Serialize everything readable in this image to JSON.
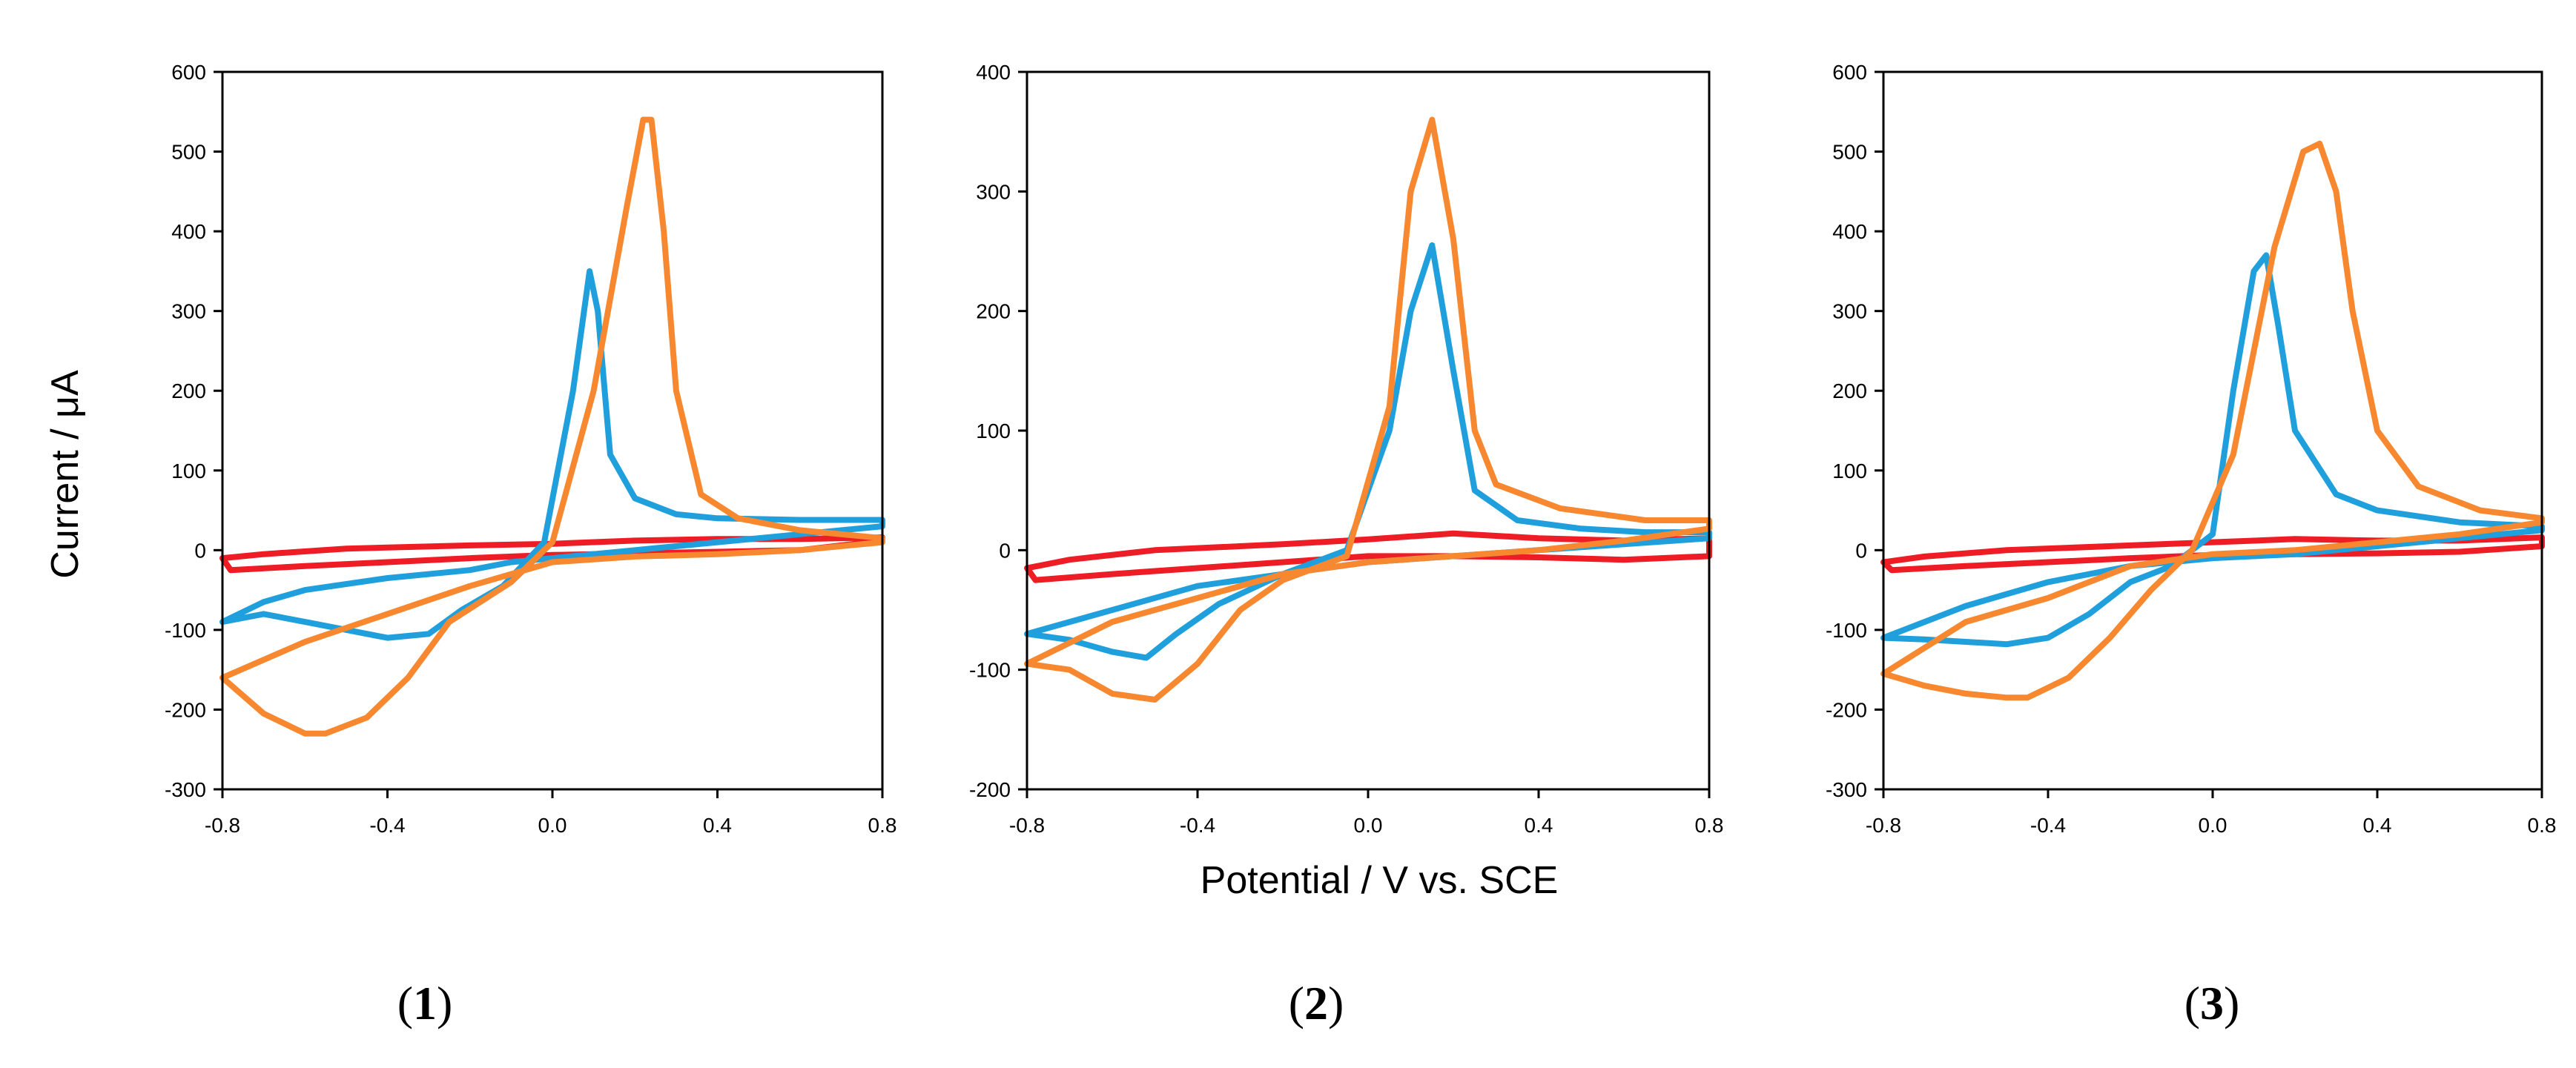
{
  "figure": {
    "ylabel": "Current / μA",
    "xlabel": "Potential / V vs. SCE"
  },
  "colors": {
    "blue": "#1fa0dc",
    "orange": "#f7882f",
    "red": "#ee1c24"
  },
  "chart_data": [
    {
      "type": "line",
      "panel_label": "1",
      "xlim": [
        -0.8,
        0.8
      ],
      "ylim": [
        -300,
        600
      ],
      "x_ticks": [
        -0.8,
        -0.4,
        0.0,
        0.4,
        0.8
      ],
      "x_tick_labels": [
        "-0.8",
        "-0.4",
        "0.0",
        "0.4",
        "0.8"
      ],
      "y_ticks": [
        -300,
        -200,
        -100,
        0,
        100,
        200,
        300,
        400,
        500,
        600
      ],
      "y_tick_labels": [
        "-300",
        "-200",
        "-100",
        "0",
        "100",
        "200",
        "300",
        "400",
        "500",
        "600"
      ],
      "grid": false,
      "series": [
        {
          "color": "red",
          "x": [
            -0.8,
            -0.7,
            -0.5,
            -0.2,
            0.0,
            0.2,
            0.4,
            0.6,
            0.8,
            0.8,
            0.6,
            0.4,
            0.2,
            0.0,
            -0.2,
            -0.4,
            -0.6,
            -0.78,
            -0.8
          ],
          "y": [
            -10,
            -5,
            2,
            6,
            8,
            12,
            14,
            14,
            16,
            12,
            0,
            -2,
            -4,
            -6,
            -10,
            -15,
            -20,
            -25,
            -10
          ]
        },
        {
          "color": "blue",
          "x": [
            -0.8,
            -0.7,
            -0.6,
            -0.4,
            -0.3,
            -0.22,
            -0.12,
            -0.02,
            0.05,
            0.09,
            0.11,
            0.14,
            0.2,
            0.3,
            0.4,
            0.6,
            0.8,
            0.8,
            0.6,
            0.4,
            0.2,
            0.0,
            -0.1,
            -0.2,
            -0.4,
            -0.6,
            -0.7,
            -0.8
          ],
          "y": [
            -90,
            -80,
            -90,
            -110,
            -105,
            -75,
            -45,
            10,
            200,
            350,
            300,
            120,
            65,
            45,
            40,
            38,
            38,
            30,
            20,
            10,
            0,
            -10,
            -15,
            -25,
            -35,
            -50,
            -65,
            -90
          ]
        },
        {
          "color": "orange",
          "x": [
            -0.8,
            -0.7,
            -0.6,
            -0.55,
            -0.45,
            -0.35,
            -0.25,
            -0.1,
            0.0,
            0.1,
            0.18,
            0.22,
            0.24,
            0.27,
            0.3,
            0.36,
            0.45,
            0.6,
            0.8,
            0.8,
            0.6,
            0.4,
            0.2,
            0.0,
            -0.1,
            -0.2,
            -0.4,
            -0.6,
            -0.8
          ],
          "y": [
            -160,
            -205,
            -230,
            -230,
            -210,
            -160,
            -90,
            -40,
            10,
            200,
            430,
            540,
            540,
            400,
            200,
            70,
            40,
            25,
            15,
            10,
            0,
            -5,
            -8,
            -15,
            -30,
            -45,
            -80,
            -115,
            -160
          ]
        }
      ]
    },
    {
      "type": "line",
      "panel_label": "2",
      "xlim": [
        -0.8,
        0.8
      ],
      "ylim": [
        -200,
        400
      ],
      "x_ticks": [
        -0.8,
        -0.4,
        0.0,
        0.4,
        0.8
      ],
      "x_tick_labels": [
        "-0.8",
        "-0.4",
        "0.0",
        "0.4",
        "0.8"
      ],
      "y_ticks": [
        -200,
        -100,
        0,
        100,
        200,
        300,
        400
      ],
      "y_tick_labels": [
        "-200",
        "-100",
        "0",
        "100",
        "200",
        "300",
        "400"
      ],
      "grid": false,
      "series": [
        {
          "color": "red",
          "x": [
            -0.8,
            -0.7,
            -0.5,
            -0.2,
            0.0,
            0.2,
            0.4,
            0.6,
            0.8,
            0.8,
            0.6,
            0.4,
            0.2,
            0.0,
            -0.2,
            -0.4,
            -0.6,
            -0.78,
            -0.8
          ],
          "y": [
            -15,
            -8,
            0,
            5,
            9,
            14,
            10,
            8,
            10,
            -5,
            -8,
            -6,
            -5,
            -5,
            -10,
            -15,
            -20,
            -25,
            -15
          ]
        },
        {
          "color": "blue",
          "x": [
            -0.8,
            -0.7,
            -0.6,
            -0.52,
            -0.45,
            -0.35,
            -0.2,
            -0.05,
            0.05,
            0.1,
            0.15,
            0.2,
            0.25,
            0.35,
            0.5,
            0.65,
            0.8,
            0.8,
            0.6,
            0.4,
            0.2,
            0.0,
            -0.2,
            -0.4,
            -0.6,
            -0.8
          ],
          "y": [
            -70,
            -75,
            -85,
            -90,
            -70,
            -45,
            -20,
            0,
            100,
            200,
            255,
            150,
            50,
            25,
            18,
            15,
            15,
            10,
            5,
            0,
            -5,
            -10,
            -20,
            -30,
            -50,
            -70
          ]
        },
        {
          "color": "orange",
          "x": [
            -0.8,
            -0.7,
            -0.6,
            -0.5,
            -0.4,
            -0.3,
            -0.2,
            -0.05,
            0.05,
            0.1,
            0.15,
            0.2,
            0.25,
            0.3,
            0.45,
            0.65,
            0.8,
            0.8,
            0.6,
            0.4,
            0.2,
            0.0,
            -0.2,
            -0.4,
            -0.6,
            -0.8
          ],
          "y": [
            -95,
            -100,
            -120,
            -125,
            -95,
            -50,
            -25,
            -5,
            120,
            300,
            360,
            260,
            100,
            55,
            35,
            25,
            25,
            18,
            8,
            0,
            -5,
            -10,
            -20,
            -40,
            -60,
            -95
          ]
        }
      ]
    },
    {
      "type": "line",
      "panel_label": "3",
      "xlim": [
        -0.8,
        0.8
      ],
      "ylim": [
        -300,
        600
      ],
      "x_ticks": [
        -0.8,
        -0.4,
        0.0,
        0.4,
        0.8
      ],
      "x_tick_labels": [
        "-0.8",
        "-0.4",
        "0.0",
        "0.4",
        "0.8"
      ],
      "y_ticks": [
        -300,
        -200,
        -100,
        0,
        100,
        200,
        300,
        400,
        500,
        600
      ],
      "y_tick_labels": [
        "-300",
        "-200",
        "-100",
        "0",
        "100",
        "200",
        "300",
        "400",
        "500",
        "600"
      ],
      "grid": false,
      "series": [
        {
          "color": "red",
          "x": [
            -0.8,
            -0.7,
            -0.5,
            -0.2,
            0.0,
            0.2,
            0.4,
            0.6,
            0.8,
            0.8,
            0.6,
            0.4,
            0.2,
            0.0,
            -0.2,
            -0.4,
            -0.6,
            -0.78,
            -0.8
          ],
          "y": [
            -15,
            -8,
            0,
            6,
            10,
            14,
            12,
            12,
            16,
            5,
            -2,
            -4,
            -5,
            -6,
            -10,
            -15,
            -20,
            -25,
            -15
          ]
        },
        {
          "color": "blue",
          "x": [
            -0.8,
            -0.7,
            -0.6,
            -0.5,
            -0.4,
            -0.3,
            -0.2,
            -0.1,
            0.0,
            0.05,
            0.1,
            0.13,
            0.16,
            0.2,
            0.3,
            0.4,
            0.6,
            0.8,
            0.8,
            0.6,
            0.4,
            0.2,
            0.0,
            -0.2,
            -0.4,
            -0.6,
            -0.8
          ],
          "y": [
            -110,
            -112,
            -115,
            -118,
            -110,
            -80,
            -40,
            -20,
            20,
            200,
            350,
            370,
            280,
            150,
            70,
            50,
            35,
            30,
            25,
            15,
            5,
            -5,
            -10,
            -20,
            -40,
            -70,
            -110
          ]
        },
        {
          "color": "orange",
          "x": [
            -0.8,
            -0.7,
            -0.6,
            -0.5,
            -0.45,
            -0.35,
            -0.25,
            -0.15,
            -0.05,
            0.05,
            0.15,
            0.22,
            0.26,
            0.3,
            0.34,
            0.4,
            0.5,
            0.65,
            0.8,
            0.8,
            0.6,
            0.4,
            0.2,
            0.0,
            -0.2,
            -0.4,
            -0.6,
            -0.8
          ],
          "y": [
            -155,
            -170,
            -180,
            -185,
            -185,
            -160,
            -110,
            -50,
            0,
            120,
            380,
            500,
            510,
            450,
            300,
            150,
            80,
            50,
            40,
            35,
            20,
            10,
            0,
            -5,
            -20,
            -60,
            -90,
            -155
          ]
        }
      ]
    }
  ]
}
